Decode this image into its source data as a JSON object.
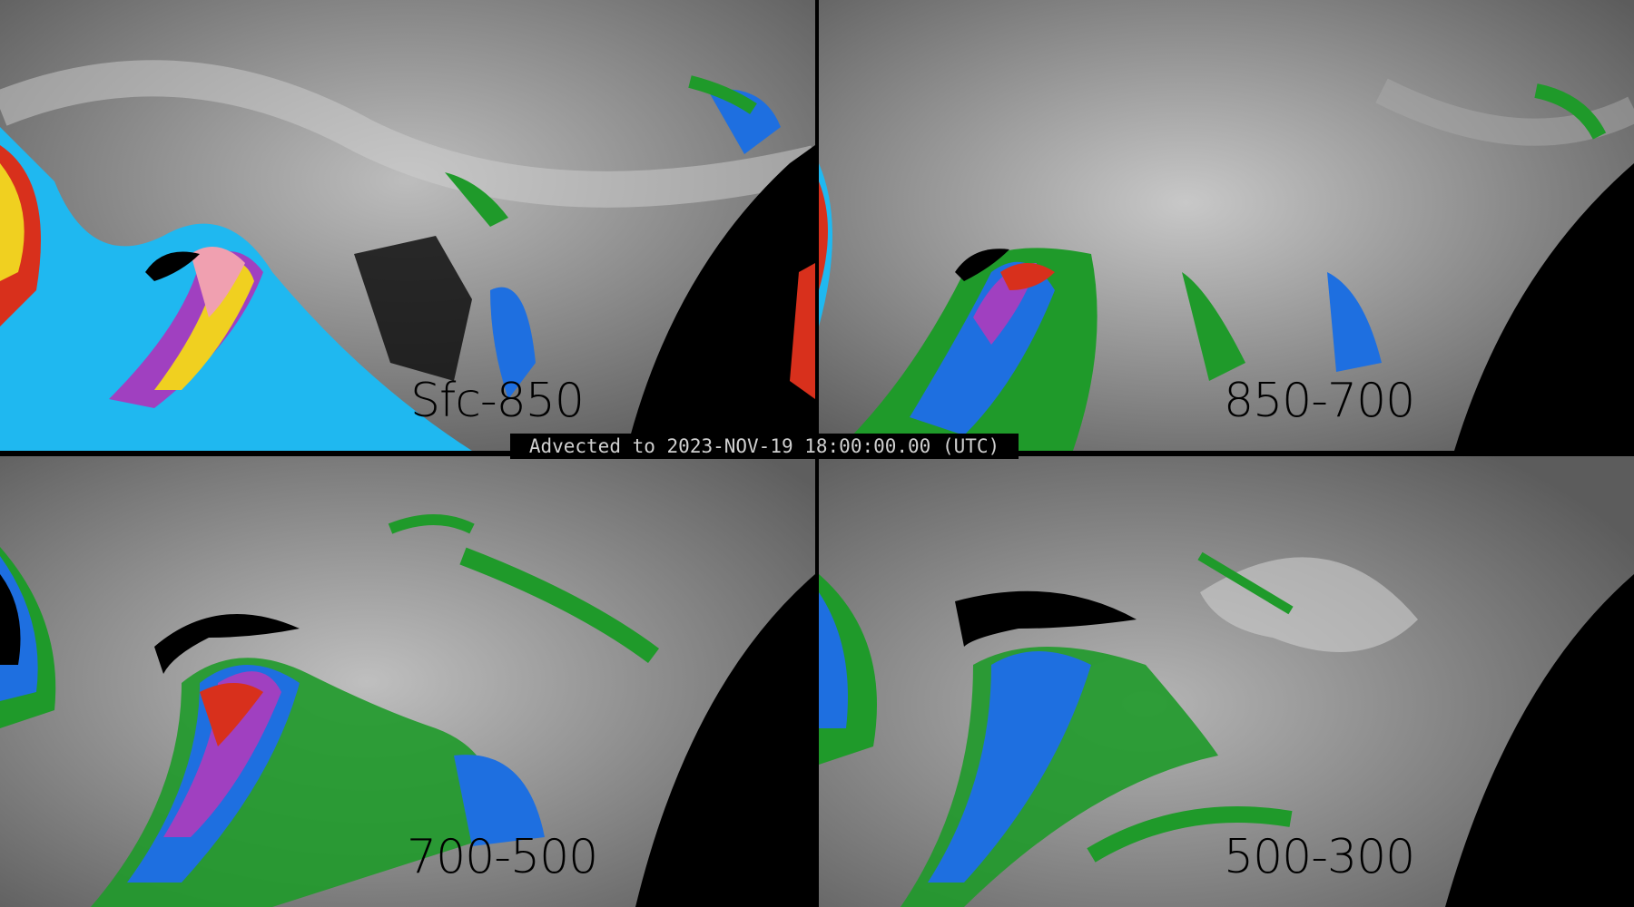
{
  "banner": {
    "text": "Advected to 2023-NOV-19 18:00:00.00 (UTC)"
  },
  "panels": [
    {
      "label": "Sfc-850"
    },
    {
      "label": "850-700"
    },
    {
      "label": "700-500"
    },
    {
      "label": "500-300"
    }
  ],
  "colors": {
    "background_gray": "#6a6a6a",
    "green": "#1f9a2a",
    "blue": "#1e6fe0",
    "cyan": "#1fb8f0",
    "purple": "#a040c0",
    "red": "#d8301c",
    "yellow": "#f0d020",
    "pink": "#f0a0b0",
    "night_side": "#000000"
  }
}
